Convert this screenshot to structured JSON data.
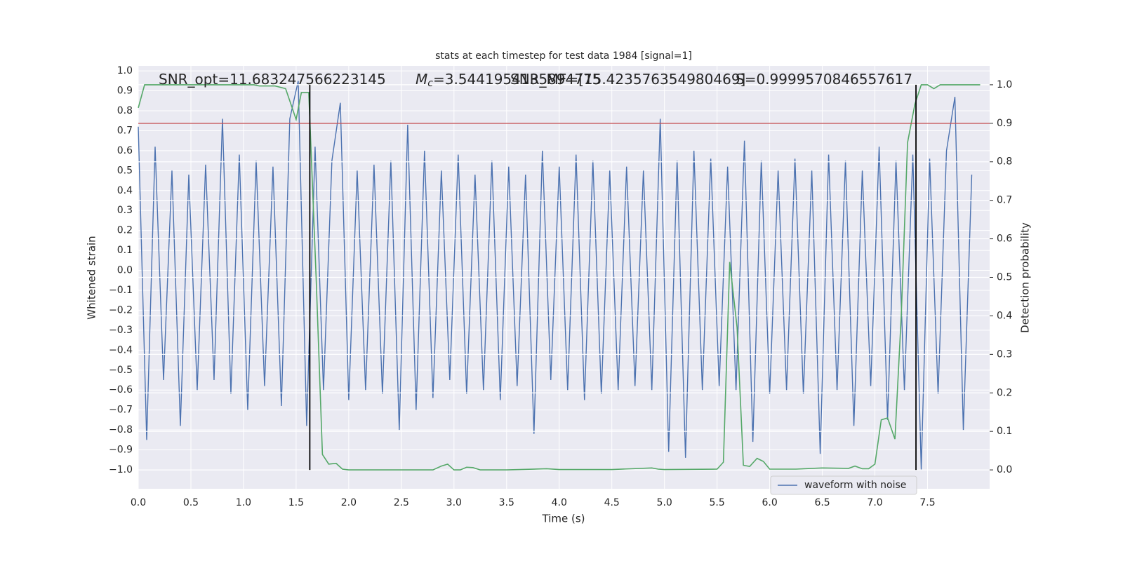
{
  "chart_data": {
    "type": "line",
    "title": "stats at each timestep for test data 1984 [signal=1]",
    "xlabel": "Time (s)",
    "ylabel": "Whitened strain",
    "y2label": "Detection probability",
    "xlim": [
      0,
      8.09
    ],
    "ylim": [
      -1.095,
      1.025
    ],
    "y2lim": [
      -0.049,
      1.049
    ],
    "grid": true,
    "legend": "lower right",
    "xticks": [
      {
        "value": 0,
        "label": "0.0"
      },
      0.5,
      {
        "value": 1,
        "label": "1.0"
      },
      1.5,
      {
        "value": 2,
        "label": "2.0"
      },
      2.5,
      {
        "value": 3,
        "label": "3.0"
      },
      3.5,
      {
        "value": 4,
        "label": "4.0"
      },
      4.5,
      {
        "value": 5,
        "label": "5.0"
      },
      5.5,
      {
        "value": 6,
        "label": "6.0"
      },
      6.5,
      {
        "value": 7,
        "label": "7.0"
      },
      7.5
    ],
    "yticks": [
      {
        "value": -1,
        "label": "−1.0"
      },
      {
        "value": -0.9,
        "label": "−0.9"
      },
      {
        "value": -0.8,
        "label": "−0.8"
      },
      {
        "value": -0.7,
        "label": "−0.7"
      },
      {
        "value": -0.6,
        "label": "−0.6"
      },
      {
        "value": -0.5,
        "label": "−0.5"
      },
      {
        "value": -0.4,
        "label": "−0.4"
      },
      {
        "value": -0.3,
        "label": "−0.3"
      },
      {
        "value": -0.2,
        "label": "−0.2"
      },
      {
        "value": -0.1,
        "label": "−0.1"
      },
      {
        "value": 0,
        "label": "0.0"
      },
      0.1,
      0.2,
      0.3,
      0.4,
      0.5,
      0.6,
      0.7,
      0.8,
      0.9,
      {
        "value": 1,
        "label": "1.0"
      }
    ],
    "y2ticks": [
      {
        "value": 0,
        "label": "0.0"
      },
      0.1,
      0.2,
      0.3,
      0.4,
      0.5,
      0.6,
      0.7,
      0.8,
      0.9,
      {
        "value": 1,
        "label": "1.0"
      }
    ],
    "annotations": [
      {
        "text": "SNR_opt=11.683247566223145"
      },
      {
        "symbol": "M",
        "subscript": "c",
        "text": "=3.5441954135894775"
      },
      {
        "text": "SNR_MF=[15.423576354980469]"
      },
      {
        "text": "S=0.9999570846557617"
      }
    ],
    "series": [
      {
        "name": "waveform with noise",
        "color": "#4c72b0",
        "x": [
          0,
          0.08,
          0.16,
          0.24,
          0.32,
          0.4,
          0.48,
          0.56,
          0.64,
          0.72,
          0.8,
          0.88,
          0.96,
          1.04,
          1.12,
          1.2,
          1.28,
          1.36,
          1.44,
          1.52,
          1.6,
          1.68,
          1.76,
          1.84,
          1.92,
          2,
          2.08,
          2.16,
          2.24,
          2.32,
          2.4,
          2.48,
          2.56,
          2.64,
          2.72,
          2.8,
          2.88,
          2.96,
          3.04,
          3.12,
          3.2,
          3.28,
          3.36,
          3.44,
          3.52,
          3.6,
          3.68,
          3.76,
          3.84,
          3.92,
          4,
          4.08,
          4.16,
          4.24,
          4.32,
          4.4,
          4.48,
          4.56,
          4.64,
          4.72,
          4.8,
          4.88,
          4.96,
          5.04,
          5.12,
          5.2,
          5.28,
          5.36,
          5.44,
          5.52,
          5.6,
          5.68,
          5.76,
          5.84,
          5.92,
          6,
          6.08,
          6.16,
          6.24,
          6.32,
          6.4,
          6.48,
          6.56,
          6.64,
          6.72,
          6.8,
          6.88,
          6.96,
          7.04,
          7.12,
          7.2,
          7.28,
          7.36,
          7.44,
          7.52,
          7.6,
          7.68,
          7.76,
          7.84,
          7.92
        ],
        "values": [
          0.72,
          -0.85,
          0.62,
          -0.55,
          0.5,
          -0.78,
          0.48,
          -0.6,
          0.53,
          -0.55,
          0.76,
          -0.62,
          0.58,
          -0.7,
          0.55,
          -0.58,
          0.52,
          -0.68,
          0.76,
          0.95,
          -0.78,
          0.62,
          -0.6,
          0.55,
          0.84,
          -0.65,
          0.5,
          -0.6,
          0.53,
          -0.62,
          0.55,
          -0.8,
          0.73,
          -0.7,
          0.6,
          -0.64,
          0.5,
          -0.55,
          0.58,
          -0.62,
          0.48,
          -0.6,
          0.55,
          -0.65,
          0.52,
          -0.58,
          0.48,
          -0.82,
          0.6,
          -0.55,
          0.52,
          -0.6,
          0.58,
          -0.65,
          0.55,
          -0.62,
          0.5,
          -0.6,
          0.52,
          -0.58,
          0.5,
          -0.6,
          0.76,
          -0.91,
          0.55,
          -0.94,
          0.6,
          -0.6,
          0.56,
          -0.58,
          0.52,
          -0.6,
          0.65,
          -0.86,
          0.55,
          -0.62,
          0.5,
          -0.6,
          0.56,
          -0.62,
          0.5,
          -0.92,
          0.58,
          -0.6,
          0.55,
          -0.78,
          0.5,
          -0.58,
          0.62,
          -0.75,
          0.55,
          -0.6,
          0.58,
          -1.0,
          0.56,
          -0.62,
          0.6,
          0.87,
          -0.8,
          0.48
        ]
      },
      {
        "color": "#55a868",
        "axis": "y2",
        "x": [
          0,
          0.06,
          0.2,
          0.5,
          0.8,
          1.1,
          1.15,
          1.3,
          1.4,
          1.5,
          1.55,
          1.62,
          1.69,
          1.75,
          1.81,
          1.88,
          1.94,
          2,
          2.5,
          2.8,
          2.88,
          2.94,
          3,
          3.06,
          3.12,
          3.18,
          3.25,
          3.5,
          3.88,
          4,
          4.5,
          4.88,
          4.94,
          5,
          5.5,
          5.56,
          5.62,
          5.69,
          5.75,
          5.81,
          5.88,
          5.94,
          6,
          6.25,
          6.5,
          6.75,
          6.81,
          6.88,
          6.94,
          7,
          7.06,
          7.12,
          7.19,
          7.25,
          7.31,
          7.38,
          7.44,
          7.5,
          7.56,
          7.62,
          7.75,
          8
        ],
        "values": [
          0.94,
          1.0,
          1.0,
          1.0,
          1.0,
          1.0,
          0.997,
          0.997,
          0.99,
          0.91,
          0.98,
          0.98,
          0.5,
          0.04,
          0.015,
          0.017,
          0.002,
          0.0,
          0.0,
          0.0,
          0.01,
          0.015,
          0.0,
          0.0,
          0.007,
          0.006,
          0.0,
          0.0,
          0.003,
          0.001,
          0.001,
          0.005,
          0.002,
          0.001,
          0.002,
          0.02,
          0.54,
          0.37,
          0.012,
          0.009,
          0.03,
          0.022,
          0.002,
          0.002,
          0.005,
          0.004,
          0.01,
          0.003,
          0.003,
          0.015,
          0.13,
          0.135,
          0.08,
          0.4,
          0.85,
          0.95,
          1.0,
          1.0,
          0.99,
          1.0,
          1.0,
          1.0
        ]
      }
    ],
    "hlines": [
      {
        "y": 0.9,
        "axis": "y2",
        "color": "#c44e52"
      }
    ],
    "vlines": [
      {
        "x": 1.63,
        "ymin": 0,
        "ymax": 1,
        "axis": "y2",
        "color": "#000000"
      },
      {
        "x": 7.39,
        "ymin": 0,
        "ymax": 1,
        "axis": "y2",
        "color": "#000000"
      }
    ]
  }
}
